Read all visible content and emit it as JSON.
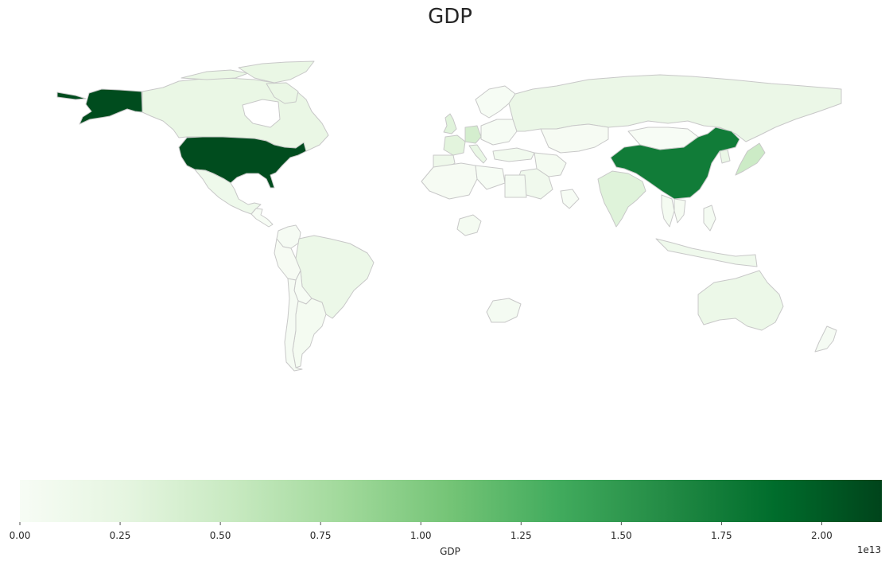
{
  "title": "GDP",
  "chart_data": {
    "type": "choropleth",
    "title": "GDP",
    "colormap": "Greens",
    "value_label": "GDP",
    "scale_exponent_label": "1e13",
    "vmin": 0,
    "vmax": 21500000000000.0,
    "ticks": [
      0.0,
      0.25,
      0.5,
      0.75,
      1.0,
      1.25,
      1.5,
      1.75,
      2.0
    ],
    "tick_labels": [
      "0.00",
      "0.25",
      "0.50",
      "0.75",
      "1.00",
      "1.25",
      "1.50",
      "1.75",
      "2.00"
    ],
    "border_color": "#c8c8c8",
    "colorbar_stops": [
      "#f7fcf5",
      "#e5f5e0",
      "#c7e9c0",
      "#a1d99b",
      "#74c476",
      "#41ab5d",
      "#238b45",
      "#006d2c",
      "#00441b"
    ],
    "regions": [
      {
        "name": "United States",
        "value": 21000000000000.0
      },
      {
        "name": "China",
        "value": 17500000000000.0
      },
      {
        "name": "Japan",
        "value": 4900000000000.0
      },
      {
        "name": "Germany",
        "value": 4200000000000.0
      },
      {
        "name": "India",
        "value": 3200000000000.0
      },
      {
        "name": "United Kingdom",
        "value": 3100000000000.0
      },
      {
        "name": "France",
        "value": 2900000000000.0
      },
      {
        "name": "Canada",
        "value": 2000000000000.0
      },
      {
        "name": "Italy",
        "value": 2100000000000.0
      },
      {
        "name": "Brazil",
        "value": 1600000000000.0
      },
      {
        "name": "Russia",
        "value": 1800000000000.0
      },
      {
        "name": "Australia",
        "value": 1600000000000.0
      },
      {
        "name": "South Korea",
        "value": 1800000000000.0
      },
      {
        "name": "Mexico",
        "value": 1300000000000.0
      },
      {
        "name": "Indonesia",
        "value": 1200000000000.0
      },
      {
        "name": "Spain",
        "value": 1400000000000.0
      },
      {
        "name": "Saudi Arabia",
        "value": 1000000000000.0
      },
      {
        "name": "Turkey",
        "value": 900000000000.0
      },
      {
        "name": "Argentina",
        "value": 500000000000.0
      },
      {
        "name": "South Africa",
        "value": 400000000000.0
      },
      {
        "name": "Nigeria",
        "value": 450000000000.0
      },
      {
        "name": "Egypt",
        "value": 400000000000.0
      },
      {
        "name": "Algeria",
        "value": 200000000000.0
      },
      {
        "name": "Kazakhstan",
        "value": 200000000000.0
      },
      {
        "name": "Mongolia",
        "value": 15000000000.0
      },
      {
        "name": "Colombia",
        "value": 300000000000.0
      },
      {
        "name": "Peru",
        "value": 200000000000.0
      },
      {
        "name": "Chile",
        "value": 300000000000.0
      },
      {
        "name": "New Zealand",
        "value": 250000000000.0
      },
      {
        "name": "Thailand",
        "value": 500000000000.0
      },
      {
        "name": "Vietnam",
        "value": 350000000000.0
      },
      {
        "name": "Philippines",
        "value": 400000000000.0
      },
      {
        "name": "Iran",
        "value": 500000000000.0
      }
    ]
  }
}
